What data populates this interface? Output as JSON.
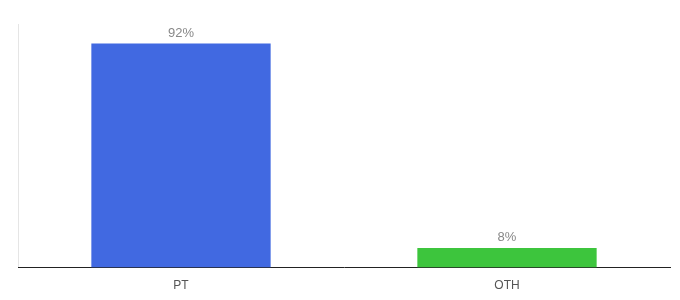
{
  "chart_data": {
    "type": "bar",
    "categories": [
      "PT",
      "OTH"
    ],
    "values": [
      92,
      8
    ],
    "value_labels": [
      "92%",
      "8%"
    ],
    "data_labels": true,
    "colors": [
      "#4169E1",
      "#3DC53D"
    ],
    "ylim": [
      0,
      100
    ],
    "tick_labels": "x",
    "grid": false
  }
}
